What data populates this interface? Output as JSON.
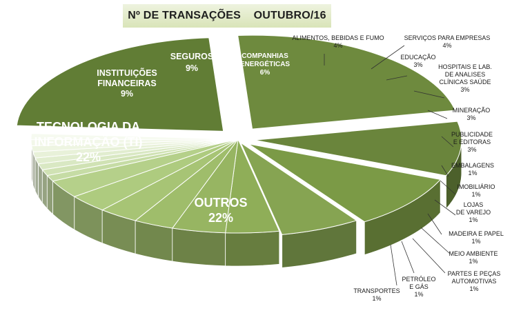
{
  "chart_data": {
    "type": "pie",
    "title": "Nº DE TRANSAÇÕES    OUTUBRO/16",
    "unit": "%",
    "slices": [
      {
        "lines": [
          "TECNOLOGIA DA",
          "INFORMAÇÃO (TI)"
        ],
        "value": 22,
        "display": "22%"
      },
      {
        "lines": [
          "INSTITUIÇÕES",
          "FINANCEIRAS"
        ],
        "value": 9,
        "display": "9%"
      },
      {
        "lines": [
          "SEGUROS"
        ],
        "value": 9,
        "display": "9%"
      },
      {
        "lines": [
          "COMPANHIAS",
          "ENERGÉTICAS"
        ],
        "value": 6,
        "display": "6%"
      },
      {
        "lines": [
          "ALIMENTOS, BEBIDAS E FUMO"
        ],
        "value": 4,
        "display": "4%"
      },
      {
        "lines": [
          "SERVIÇOS PARA EMPRESAS"
        ],
        "value": 4,
        "display": "4%"
      },
      {
        "lines": [
          "EDUCAÇÃO"
        ],
        "value": 3,
        "display": "3%"
      },
      {
        "lines": [
          "HOSPITAIS E LAB.",
          "DE ANALISES",
          "CLÍNICAS SAÚDE"
        ],
        "value": 3,
        "display": "3%"
      },
      {
        "lines": [
          "MINERAÇÃO"
        ],
        "value": 3,
        "display": "3%"
      },
      {
        "lines": [
          "PUBLICIDADE",
          "E EDITORAS"
        ],
        "value": 3,
        "display": "3%"
      },
      {
        "lines": [
          "EMBALAGENS"
        ],
        "value": 1,
        "display": "1%"
      },
      {
        "lines": [
          "IMOBILIÁRIO"
        ],
        "value": 1,
        "display": "1%"
      },
      {
        "lines": [
          "LOJAS",
          "DE VAREJO"
        ],
        "value": 1,
        "display": "1%"
      },
      {
        "lines": [
          "MADEIRA E PAPEL"
        ],
        "value": 1,
        "display": "1%"
      },
      {
        "lines": [
          "MEIO AMBIENTE"
        ],
        "value": 1,
        "display": "1%"
      },
      {
        "lines": [
          "PARTES E PEÇAS",
          "AUTOMOTIVAS"
        ],
        "value": 1,
        "display": "1%"
      },
      {
        "lines": [
          "PETRÓLEO",
          "E GÁS"
        ],
        "value": 1,
        "display": "1%"
      },
      {
        "lines": [
          "TRANSPORTES"
        ],
        "value": 1,
        "display": "1%"
      },
      {
        "lines": [
          "OUTROS"
        ],
        "value": 22,
        "display": "22%"
      }
    ],
    "legend": "none",
    "style": "3d-exploded-pie"
  }
}
